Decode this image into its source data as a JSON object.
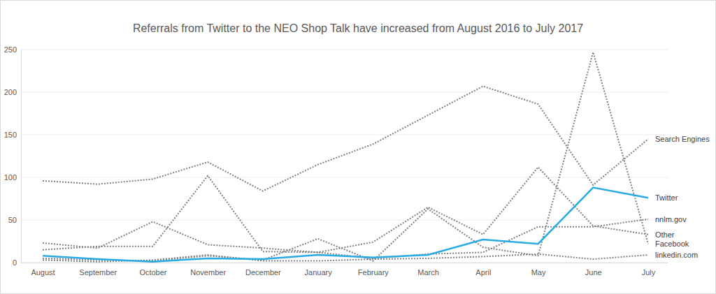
{
  "chart_data": {
    "type": "line",
    "title": "Referrals from Twitter to the NEO Shop Talk have increased from August 2016 to July 2017",
    "categories": [
      "August",
      "September",
      "October",
      "November",
      "December",
      "January",
      "February",
      "March",
      "April",
      "May",
      "June",
      "July"
    ],
    "ylim": [
      0,
      250
    ],
    "yticks": [
      0,
      50,
      100,
      150,
      200,
      250
    ],
    "grid": true,
    "series": [
      {
        "name": "Search Engines",
        "color": "#808080",
        "line_style": "dotted",
        "values": [
          96,
          92,
          98,
          118,
          84,
          115,
          139,
          173,
          207,
          186,
          91,
          145
        ]
      },
      {
        "name": "Twitter",
        "color": "#29abe2",
        "line_style": "solid",
        "values": [
          8,
          4,
          1,
          5,
          4,
          9,
          6,
          9,
          27,
          22,
          88,
          76
        ]
      },
      {
        "name": "nnlm.gov",
        "color": "#808080",
        "line_style": "dotted",
        "values": [
          15,
          19,
          19,
          102,
          13,
          12,
          5,
          10,
          12,
          42,
          42,
          51
        ]
      },
      {
        "name": "Other",
        "color": "#808080",
        "line_style": "dotted",
        "values": [
          23,
          17,
          48,
          21,
          17,
          12,
          24,
          65,
          33,
          112,
          43,
          33
        ]
      },
      {
        "name": "Facebook",
        "color": "#808080",
        "line_style": "dotted",
        "values": [
          5,
          3,
          2,
          8,
          3,
          28,
          2,
          63,
          18,
          8,
          247,
          22
        ]
      },
      {
        "name": "linkedin.com",
        "color": "#808080",
        "line_style": "dotted",
        "values": [
          3,
          1,
          3,
          9,
          2,
          2,
          4,
          5,
          7,
          10,
          4,
          9
        ]
      }
    ]
  }
}
